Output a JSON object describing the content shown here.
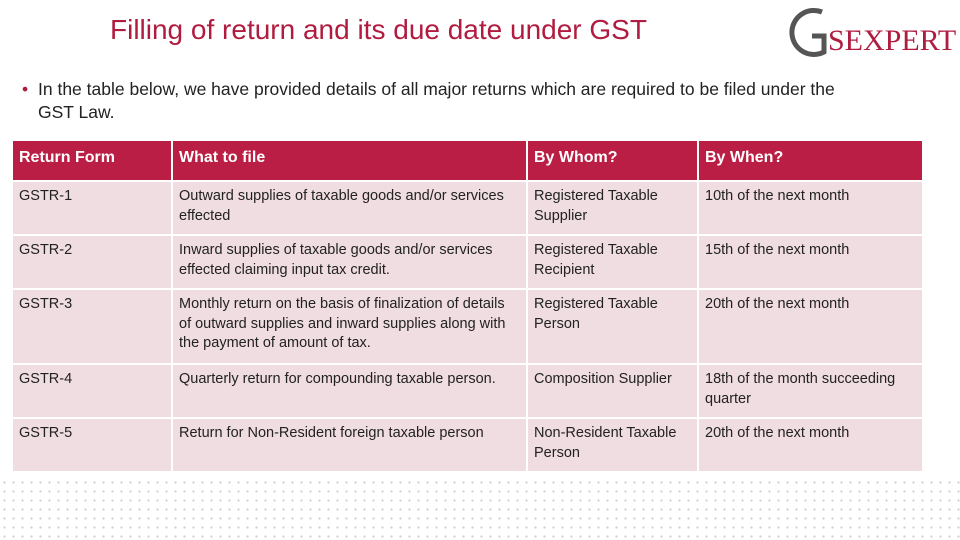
{
  "slide": {
    "title": "Filling of return and its due date under GST",
    "logo": "SEXPERT",
    "bullet": "In the table below, we have provided details of all major returns which are required to be filed under the GST Law.",
    "table": {
      "header": [
        "Return Form",
        "What to file",
        "By Whom?",
        "By When?"
      ],
      "rows": [
        [
          "GSTR-1",
          "Outward supplies of taxable goods and/or services effected",
          "Registered Taxable Supplier",
          "10th of the next month"
        ],
        [
          "GSTR-2",
          "Inward supplies of taxable goods and/or services effected claiming input tax credit.",
          "Registered Taxable Recipient",
          "15th of the next month"
        ],
        [
          "GSTR-3",
          "Monthly return on the basis of finalization of details of outward supplies and inward supplies along with the payment of amount of tax.",
          "Registered Taxable Person",
          "20th of the next month"
        ],
        [
          "GSTR-4",
          "Quarterly return for compounding taxable person.",
          "Composition Supplier",
          "18th of the month succeeding quarter"
        ],
        [
          "GSTR-5",
          "Return for Non-Resident foreign taxable person",
          "Non-Resident Taxable Person",
          "20th of the next month"
        ]
      ]
    }
  }
}
